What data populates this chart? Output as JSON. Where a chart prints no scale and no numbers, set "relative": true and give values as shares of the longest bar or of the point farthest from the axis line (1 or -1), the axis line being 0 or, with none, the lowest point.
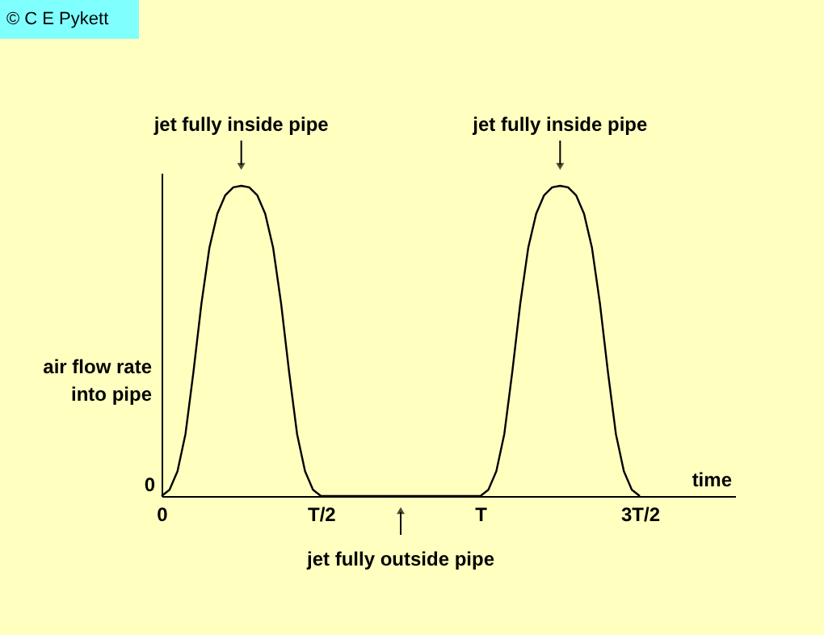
{
  "chart_data": {
    "type": "line",
    "relative": true,
    "xlabel": "time",
    "ylabel": [
      "air flow rate",
      "into pipe"
    ],
    "categories": [
      "0",
      null,
      null,
      null,
      null,
      null,
      null,
      null,
      null,
      null,
      null,
      null,
      null,
      null,
      null,
      null,
      null,
      null,
      null,
      null,
      "T/2",
      null,
      null,
      null,
      null,
      null,
      null,
      null,
      null,
      null,
      null,
      null,
      null,
      null,
      null,
      null,
      null,
      null,
      null,
      null,
      "T",
      null,
      null,
      null,
      null,
      null,
      null,
      null,
      null,
      null,
      null,
      null,
      null,
      null,
      null,
      null,
      null,
      null,
      null,
      null,
      "3T/2"
    ],
    "series": [
      {
        "color": "#000000",
        "values": [
          0,
          0.02,
          0.08,
          0.2,
          0.4,
          0.62,
          0.8,
          0.91,
          0.97,
          0.995,
          1,
          0.995,
          0.97,
          0.91,
          0.8,
          0.62,
          0.4,
          0.2,
          0.08,
          0.02,
          0,
          0,
          0,
          0,
          0,
          0,
          0,
          0,
          0,
          0,
          0,
          0,
          0,
          0,
          0,
          0,
          0,
          0,
          0,
          0,
          0,
          0.02,
          0.08,
          0.2,
          0.4,
          0.62,
          0.8,
          0.91,
          0.97,
          0.995,
          1,
          0.995,
          0.97,
          0.91,
          0.8,
          0.62,
          0.4,
          0.2,
          0.08,
          0.02,
          0
        ]
      }
    ],
    "annotations": [
      "jet fully inside pipe",
      "jet fully inside pipe",
      "jet fully outside pipe",
      "0",
      "© C E Pykett"
    ],
    "marker": "none",
    "line_style": "solid",
    "grid": false
  }
}
